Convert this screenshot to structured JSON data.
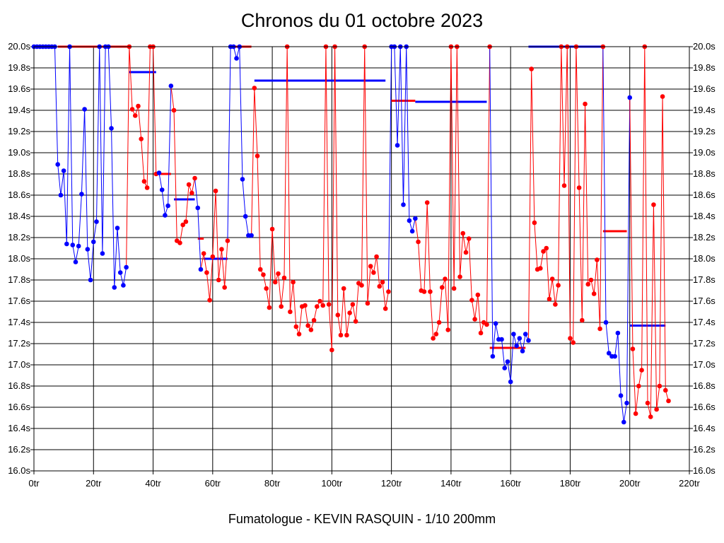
{
  "chart_data": {
    "type": "line",
    "title": "Chronos du 01 octobre 2023",
    "footer": "Fumatologue - KEVIN RASQUIN - 1/10 200mm",
    "xlim": [
      0,
      220
    ],
    "ylim": [
      16.0,
      20.0
    ],
    "x_ticks": [
      0,
      20,
      40,
      60,
      80,
      100,
      120,
      140,
      160,
      180,
      200,
      220
    ],
    "x_tick_labels": [
      "0tr",
      "20tr",
      "40tr",
      "60tr",
      "80tr",
      "100tr",
      "120tr",
      "140tr",
      "160tr",
      "180tr",
      "200tr",
      "220tr"
    ],
    "y_ticks": [
      16.0,
      16.2,
      16.4,
      16.6,
      16.8,
      17.0,
      17.2,
      17.4,
      17.6,
      17.8,
      18.0,
      18.2,
      18.4,
      18.6,
      18.8,
      19.0,
      19.2,
      19.4,
      19.6,
      19.8,
      20.0
    ],
    "y_tick_labels": [
      "16.0s",
      "16.2s",
      "16.4s",
      "16.6s",
      "16.8s",
      "17.0s",
      "17.2s",
      "17.4s",
      "17.6s",
      "17.8s",
      "18.0s",
      "18.2s",
      "18.4s",
      "18.6s",
      "18.8s",
      "19.0s",
      "19.2s",
      "19.4s",
      "19.6s",
      "19.8s",
      "20.0s"
    ],
    "grid": true,
    "colors": {
      "blue": "#0000ff",
      "red": "#ff0000",
      "axis": "#000000",
      "grid": "#000000"
    },
    "series": [
      {
        "color": "blue",
        "points": [
          [
            0,
            20.0
          ],
          [
            1,
            20.0
          ],
          [
            2,
            20.0
          ],
          [
            3,
            20.0
          ],
          [
            4,
            20.0
          ],
          [
            5,
            20.0
          ],
          [
            6,
            20.0
          ],
          [
            7,
            20.0
          ],
          [
            8,
            18.89
          ],
          [
            9,
            18.6
          ],
          [
            10,
            18.83
          ],
          [
            11,
            18.14
          ],
          [
            12,
            20.0
          ],
          [
            13,
            18.13
          ],
          [
            14,
            17.97
          ],
          [
            15,
            18.12
          ],
          [
            16,
            18.61
          ],
          [
            17,
            19.41
          ],
          [
            18,
            18.09
          ],
          [
            19,
            17.8
          ],
          [
            20,
            18.16
          ],
          [
            21,
            18.35
          ],
          [
            22,
            20.0
          ],
          [
            23,
            18.05
          ],
          [
            24,
            20.0
          ],
          [
            25,
            20.0
          ],
          [
            26,
            19.23
          ],
          [
            27,
            17.73
          ],
          [
            28,
            18.29
          ],
          [
            29,
            17.87
          ],
          [
            30,
            17.75
          ],
          [
            31,
            17.92
          ]
        ]
      },
      {
        "color": "red",
        "points": [
          [
            32,
            20.0
          ],
          [
            33,
            19.41
          ],
          [
            34,
            19.35
          ],
          [
            35,
            19.44
          ],
          [
            36,
            19.13
          ],
          [
            37,
            18.73
          ],
          [
            38,
            18.67
          ],
          [
            39,
            20.0
          ],
          [
            40,
            20.0
          ],
          [
            41,
            18.8
          ]
        ]
      },
      {
        "color": "blue",
        "points": [
          [
            42,
            18.81
          ],
          [
            43,
            18.65
          ],
          [
            44,
            18.41
          ],
          [
            45,
            18.5
          ],
          [
            46,
            19.63
          ]
        ]
      },
      {
        "color": "red",
        "points": [
          [
            47,
            19.4
          ],
          [
            48,
            18.17
          ],
          [
            49,
            18.15
          ],
          [
            50,
            18.32
          ],
          [
            51,
            18.35
          ],
          [
            52,
            18.7
          ],
          [
            53,
            18.62
          ],
          [
            54,
            18.76
          ]
        ]
      },
      {
        "color": "blue",
        "points": [
          [
            55,
            18.48
          ],
          [
            56,
            17.9
          ]
        ]
      },
      {
        "color": "red",
        "points": [
          [
            57,
            18.05
          ],
          [
            58,
            17.87
          ],
          [
            59,
            17.61
          ],
          [
            60,
            18.02
          ],
          [
            61,
            18.64
          ],
          [
            62,
            17.8
          ],
          [
            63,
            18.09
          ],
          [
            64,
            17.73
          ],
          [
            65,
            18.17
          ]
        ]
      },
      {
        "color": "blue",
        "points": [
          [
            66,
            20.0
          ],
          [
            67,
            20.0
          ],
          [
            68,
            19.89
          ],
          [
            69,
            20.0
          ],
          [
            70,
            18.75
          ],
          [
            71,
            18.4
          ],
          [
            72,
            18.22
          ],
          [
            73,
            18.22
          ]
        ]
      },
      {
        "color": "red",
        "points": [
          [
            74,
            19.61
          ],
          [
            75,
            18.97
          ],
          [
            76,
            17.9
          ],
          [
            77,
            17.85
          ],
          [
            78,
            17.72
          ],
          [
            79,
            17.54
          ],
          [
            80,
            18.28
          ],
          [
            81,
            17.78
          ],
          [
            82,
            17.86
          ],
          [
            83,
            17.55
          ],
          [
            84,
            17.82
          ],
          [
            85,
            20.0
          ],
          [
            86,
            17.5
          ],
          [
            87,
            17.78
          ],
          [
            88,
            17.36
          ],
          [
            89,
            17.29
          ],
          [
            90,
            17.55
          ],
          [
            91,
            17.56
          ],
          [
            92,
            17.37
          ],
          [
            93,
            17.33
          ],
          [
            94,
            17.42
          ],
          [
            95,
            17.55
          ],
          [
            96,
            17.6
          ],
          [
            97,
            17.56
          ],
          [
            98,
            20.0
          ],
          [
            99,
            17.57
          ],
          [
            100,
            17.14
          ],
          [
            101,
            20.0
          ],
          [
            102,
            17.47
          ],
          [
            103,
            17.28
          ],
          [
            104,
            17.72
          ],
          [
            105,
            17.28
          ],
          [
            106,
            17.49
          ],
          [
            107,
            17.57
          ],
          [
            108,
            17.41
          ],
          [
            109,
            17.77
          ],
          [
            110,
            17.75
          ],
          [
            111,
            20.0
          ],
          [
            112,
            17.58
          ],
          [
            113,
            17.93
          ],
          [
            114,
            17.87
          ],
          [
            115,
            18.02
          ],
          [
            116,
            17.74
          ],
          [
            117,
            17.78
          ],
          [
            118,
            17.53
          ],
          [
            119,
            17.69
          ]
        ]
      },
      {
        "color": "blue",
        "points": [
          [
            120,
            20.0
          ],
          [
            121,
            20.0
          ],
          [
            122,
            19.07
          ],
          [
            123,
            20.0
          ],
          [
            124,
            18.51
          ],
          [
            125,
            20.0
          ],
          [
            126,
            18.36
          ],
          [
            127,
            18.26
          ],
          [
            128,
            18.38
          ]
        ]
      },
      {
        "color": "red",
        "points": [
          [
            129,
            18.16
          ],
          [
            130,
            17.7
          ],
          [
            131,
            17.69
          ],
          [
            132,
            18.53
          ],
          [
            133,
            17.69
          ],
          [
            134,
            17.25
          ],
          [
            135,
            17.29
          ],
          [
            136,
            17.4
          ],
          [
            137,
            17.73
          ],
          [
            138,
            17.81
          ],
          [
            139,
            17.33
          ],
          [
            140,
            20.0
          ],
          [
            141,
            17.72
          ],
          [
            142,
            20.0
          ],
          [
            143,
            17.83
          ],
          [
            144,
            18.24
          ],
          [
            145,
            18.06
          ],
          [
            146,
            18.19
          ],
          [
            147,
            17.61
          ],
          [
            148,
            17.43
          ],
          [
            149,
            17.66
          ],
          [
            150,
            17.3
          ],
          [
            151,
            17.4
          ],
          [
            152,
            17.38
          ],
          [
            153,
            20.0
          ]
        ]
      },
      {
        "color": "blue",
        "points": [
          [
            154,
            17.08
          ],
          [
            155,
            17.39
          ],
          [
            156,
            17.24
          ],
          [
            157,
            17.24
          ],
          [
            158,
            16.97
          ],
          [
            159,
            17.03
          ],
          [
            160,
            16.84
          ],
          [
            161,
            17.29
          ],
          [
            162,
            17.18
          ],
          [
            163,
            17.25
          ],
          [
            164,
            17.13
          ],
          [
            165,
            17.29
          ],
          [
            166,
            17.23
          ]
        ]
      },
      {
        "color": "red",
        "points": [
          [
            167,
            19.79
          ],
          [
            168,
            18.34
          ],
          [
            169,
            17.9
          ],
          [
            170,
            17.91
          ],
          [
            171,
            18.07
          ],
          [
            172,
            18.1
          ],
          [
            173,
            17.62
          ],
          [
            174,
            17.81
          ],
          [
            175,
            17.57
          ],
          [
            176,
            17.75
          ],
          [
            177,
            20.0
          ],
          [
            178,
            18.69
          ],
          [
            179,
            20.0
          ],
          [
            180,
            17.25
          ],
          [
            181,
            17.21
          ],
          [
            182,
            20.0
          ],
          [
            183,
            18.67
          ],
          [
            184,
            17.42
          ],
          [
            185,
            19.46
          ],
          [
            186,
            17.76
          ],
          [
            187,
            17.8
          ],
          [
            188,
            17.67
          ],
          [
            189,
            17.99
          ],
          [
            190,
            17.34
          ],
          [
            191,
            20.0
          ]
        ]
      },
      {
        "color": "blue",
        "points": [
          [
            192,
            17.4
          ],
          [
            193,
            17.11
          ],
          [
            194,
            17.08
          ],
          [
            195,
            17.08
          ],
          [
            196,
            17.3
          ],
          [
            197,
            16.71
          ],
          [
            198,
            16.46
          ],
          [
            199,
            16.64
          ],
          [
            200,
            19.52
          ]
        ]
      },
      {
        "color": "red",
        "points": [
          [
            201,
            17.15
          ],
          [
            202,
            16.54
          ],
          [
            203,
            16.8
          ],
          [
            204,
            16.95
          ],
          [
            205,
            20.0
          ],
          [
            206,
            16.64
          ],
          [
            207,
            16.51
          ],
          [
            208,
            18.51
          ],
          [
            209,
            16.58
          ],
          [
            210,
            16.8
          ],
          [
            211,
            19.53
          ],
          [
            212,
            16.76
          ],
          [
            213,
            16.66
          ]
        ]
      }
    ],
    "average_segments": [
      {
        "color": "red",
        "x": [
          8,
          32
        ],
        "y": 20.0
      },
      {
        "color": "blue",
        "x": [
          32,
          41
        ],
        "y": 19.76
      },
      {
        "color": "red",
        "x": [
          41,
          46
        ],
        "y": 18.8
      },
      {
        "color": "blue",
        "x": [
          47,
          54
        ],
        "y": 18.56
      },
      {
        "color": "red",
        "x": [
          55,
          57
        ],
        "y": 18.19
      },
      {
        "color": "blue",
        "x": [
          57,
          65
        ],
        "y": 18.0
      },
      {
        "color": "red",
        "x": [
          67,
          73
        ],
        "y": 20.0
      },
      {
        "color": "blue",
        "x": [
          74,
          118
        ],
        "y": 19.68
      },
      {
        "color": "red",
        "x": [
          120,
          128
        ],
        "y": 19.49
      },
      {
        "color": "blue",
        "x": [
          128,
          152
        ],
        "y": 19.48
      },
      {
        "color": "red",
        "x": [
          153,
          165
        ],
        "y": 17.16
      },
      {
        "color": "blue",
        "x": [
          166,
          191
        ],
        "y": 20.0
      },
      {
        "color": "red",
        "x": [
          191,
          199
        ],
        "y": 18.26
      },
      {
        "color": "blue",
        "x": [
          200,
          212
        ],
        "y": 17.37
      }
    ]
  }
}
